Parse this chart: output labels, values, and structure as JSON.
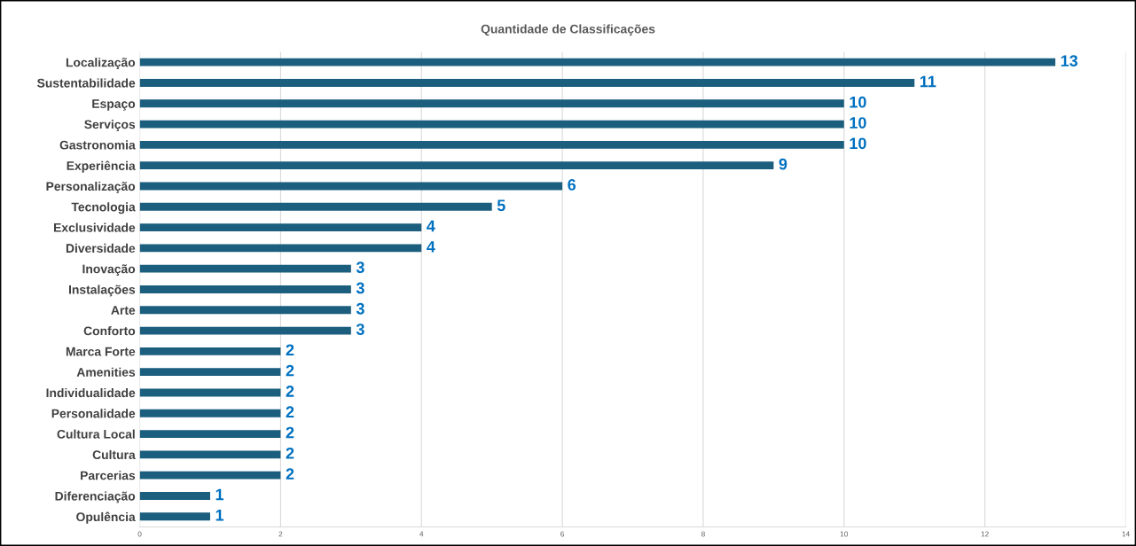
{
  "chart_data": {
    "type": "bar",
    "orientation": "horizontal",
    "title": "Quantidade de Classificações",
    "categories": [
      "Localização",
      "Sustentabilidade",
      "Espaço",
      "Serviços",
      "Gastronomia",
      "Experiência",
      "Personalização",
      "Tecnologia",
      "Exclusividade",
      "Diversidade",
      "Inovação",
      "Instalações",
      "Arte",
      "Conforto",
      "Marca Forte",
      "Amenities",
      "Individualidade",
      "Personalidade",
      "Cultura Local",
      "Cultura",
      "Parcerias",
      "Diferenciação",
      "Opulência"
    ],
    "values": [
      13,
      11,
      10,
      10,
      10,
      9,
      6,
      5,
      4,
      4,
      3,
      3,
      3,
      3,
      2,
      2,
      2,
      2,
      2,
      2,
      2,
      1,
      1
    ],
    "color": "#1b5e7e",
    "xlim": [
      0,
      14
    ],
    "xticks": [
      0,
      2,
      4,
      6,
      8,
      10,
      12,
      14
    ],
    "grid": "x",
    "data_labels": true,
    "legend": false
  }
}
